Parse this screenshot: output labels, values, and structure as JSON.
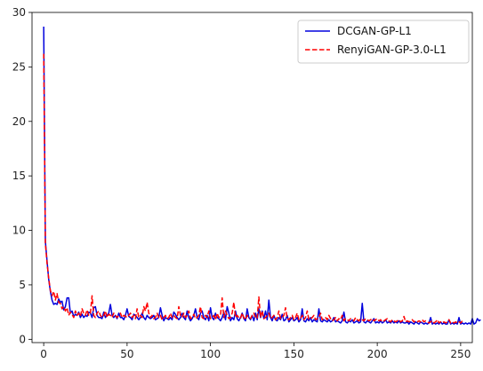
{
  "chart_data": {
    "type": "line",
    "title": "",
    "xlabel": "",
    "ylabel": "",
    "xlim": [
      -7,
      257
    ],
    "ylim": [
      -0.3,
      30
    ],
    "x_ticks": [
      0,
      50,
      100,
      150,
      200,
      250
    ],
    "y_ticks": [
      0,
      5,
      10,
      15,
      20,
      25,
      30
    ],
    "x_tick_labels": [
      "0",
      "50",
      "100",
      "150",
      "200",
      "250"
    ],
    "y_tick_labels": [
      "0",
      "5",
      "10",
      "15",
      "20",
      "25",
      "30"
    ],
    "grid": false,
    "legend_position": "top-right",
    "series": [
      {
        "name": "DCGAN-GP-L1",
        "color": "#0000dd",
        "dash": "solid",
        "values": [
          28.7,
          9.0,
          7.2,
          5.5,
          4.4,
          3.6,
          3.2,
          3.3,
          3.2,
          3.7,
          3.4,
          3.5,
          2.7,
          3.0,
          3.8,
          3.8,
          2.4,
          2.6,
          2.1,
          2.3,
          2.2,
          2.5,
          2.0,
          2.3,
          2.0,
          2.2,
          2.1,
          2.5,
          2.4,
          2.0,
          2.9,
          3.0,
          2.2,
          2.0,
          2.0,
          1.9,
          2.5,
          2.0,
          2.2,
          2.4,
          3.2,
          2.2,
          2.0,
          2.2,
          1.9,
          2.4,
          2.0,
          2.0,
          1.8,
          2.2,
          2.8,
          2.1,
          2.0,
          1.8,
          2.3,
          2.2,
          2.0,
          1.8,
          2.0,
          2.4,
          2.0,
          1.8,
          2.2,
          2.0,
          1.9,
          2.0,
          2.2,
          1.8,
          1.9,
          2.0,
          2.9,
          2.2,
          1.7,
          2.0,
          1.9,
          1.8,
          2.0,
          1.8,
          2.5,
          2.3,
          2.0,
          1.8,
          2.0,
          2.4,
          2.0,
          1.8,
          2.6,
          2.0,
          1.7,
          1.9,
          2.2,
          2.8,
          2.0,
          1.8,
          2.4,
          2.6,
          2.0,
          1.8,
          2.2,
          1.7,
          2.9,
          2.0,
          1.8,
          2.4,
          2.0,
          1.9,
          1.7,
          2.0,
          2.5,
          1.8,
          3.0,
          2.4,
          1.7,
          2.0,
          1.8,
          2.6,
          1.9,
          1.7,
          2.0,
          2.4,
          1.9,
          1.7,
          2.8,
          2.0,
          1.8,
          2.2,
          1.7,
          2.4,
          1.8,
          2.8,
          2.0,
          2.6,
          1.9,
          2.6,
          1.8,
          3.6,
          2.0,
          1.7,
          2.2,
          1.8,
          1.7,
          2.0,
          1.8,
          2.3,
          1.7,
          1.8,
          2.2,
          1.6,
          1.8,
          2.0,
          1.7,
          1.8,
          2.0,
          1.6,
          1.8,
          2.8,
          1.7,
          1.6,
          1.9,
          1.7,
          2.0,
          1.6,
          1.8,
          1.7,
          1.6,
          2.8,
          1.7,
          1.6,
          1.8,
          1.7,
          1.6,
          1.8,
          1.6,
          1.7,
          2.0,
          1.6,
          1.7,
          1.6,
          1.5,
          1.7,
          2.5,
          1.6,
          1.5,
          1.7,
          1.6,
          1.8,
          1.5,
          1.6,
          1.7,
          1.5,
          1.6,
          3.3,
          1.6,
          1.5,
          1.7,
          1.6,
          1.5,
          1.7,
          1.9,
          1.5,
          1.6,
          1.5,
          1.7,
          1.5,
          1.6,
          1.8,
          1.5,
          1.6,
          1.5,
          1.7,
          1.5,
          1.6,
          1.5,
          1.7,
          1.5,
          1.6,
          1.5,
          1.5,
          1.6,
          1.4,
          1.6,
          1.5,
          1.4,
          1.6,
          1.5,
          1.4,
          1.6,
          1.5,
          1.4,
          1.5,
          1.4,
          1.5,
          2.0,
          1.4,
          1.5,
          1.4,
          1.5,
          1.4,
          1.6,
          1.4,
          1.5,
          1.4,
          1.4,
          1.8,
          1.4,
          1.5,
          1.4,
          1.5,
          1.4,
          2.0,
          1.4,
          1.5,
          1.4,
          1.5,
          1.4,
          1.5,
          1.4,
          1.9,
          1.4,
          1.5,
          1.9,
          1.7,
          1.8
        ]
      },
      {
        "name": "RenyiGAN-GP-3.0-L1",
        "color": "#ff0000",
        "dash": "dashed",
        "values": [
          26.2,
          8.8,
          7.0,
          5.6,
          4.5,
          4.0,
          4.4,
          3.6,
          4.2,
          3.4,
          3.3,
          2.8,
          3.0,
          2.6,
          2.9,
          2.2,
          2.5,
          2.3,
          2.0,
          2.6,
          2.2,
          2.4,
          2.1,
          2.8,
          2.4,
          2.2,
          2.7,
          2.2,
          2.4,
          4.0,
          2.2,
          2.0,
          2.4,
          2.6,
          2.2,
          2.0,
          2.2,
          2.6,
          2.0,
          2.3,
          2.2,
          2.0,
          2.4,
          2.2,
          2.0,
          2.2,
          2.4,
          2.0,
          2.2,
          2.1,
          2.0,
          2.2,
          2.4,
          2.0,
          2.2,
          1.9,
          2.8,
          2.0,
          2.2,
          2.0,
          3.0,
          2.6,
          3.4,
          2.4,
          2.0,
          2.2,
          1.9,
          2.0,
          2.4,
          2.0,
          2.2,
          1.8,
          2.0,
          2.2,
          1.9,
          2.0,
          2.4,
          2.0,
          2.2,
          2.0,
          1.9,
          3.0,
          2.2,
          2.0,
          2.4,
          2.0,
          2.2,
          2.6,
          1.9,
          2.0,
          2.3,
          1.9,
          2.0,
          2.2,
          3.0,
          2.0,
          1.9,
          2.2,
          2.0,
          2.6,
          1.9,
          2.0,
          2.2,
          1.8,
          2.4,
          2.0,
          2.2,
          3.8,
          2.0,
          2.6,
          2.2,
          1.9,
          2.0,
          2.4,
          3.4,
          2.0,
          2.2,
          2.0,
          1.9,
          2.4,
          2.0,
          1.8,
          2.2,
          2.0,
          1.9,
          2.2,
          2.4,
          2.0,
          1.9,
          3.9,
          2.0,
          2.6,
          1.9,
          2.0,
          2.2,
          2.4,
          1.9,
          2.0,
          2.2,
          1.8,
          2.0,
          2.6,
          1.9,
          2.0,
          2.2,
          2.9,
          1.9,
          1.8,
          2.0,
          2.2,
          1.8,
          2.0,
          2.4,
          1.8,
          1.9,
          2.2,
          1.8,
          2.0,
          2.6,
          1.8,
          1.9,
          2.0,
          2.2,
          1.8,
          1.9,
          2.0,
          2.4,
          1.8,
          1.9,
          2.0,
          1.8,
          2.2,
          1.9,
          1.7,
          1.8,
          2.0,
          1.7,
          1.9,
          1.8,
          2.2,
          1.7,
          1.9,
          1.8,
          1.7,
          1.9,
          1.8,
          1.7,
          2.0,
          1.8,
          1.7,
          1.9,
          1.8,
          1.7,
          1.9,
          1.8,
          1.7,
          1.8,
          1.9,
          1.7,
          1.8,
          1.9,
          1.7,
          1.8,
          1.6,
          1.7,
          1.8,
          1.9,
          1.7,
          1.6,
          1.8,
          1.7,
          1.6,
          1.7,
          1.8,
          1.6,
          1.7,
          2.1,
          1.6,
          1.7,
          1.6,
          1.7,
          1.8,
          1.6,
          1.7,
          1.6,
          1.7,
          1.6,
          1.8,
          1.6,
          1.7,
          1.6,
          1.5,
          1.6,
          1.7,
          1.5,
          1.6,
          1.8,
          1.5,
          1.6,
          1.5,
          1.6,
          1.5,
          1.6,
          1.8,
          1.5,
          1.6,
          1.5,
          1.6,
          1.5,
          1.6,
          1.5,
          1.7
        ]
      }
    ]
  }
}
